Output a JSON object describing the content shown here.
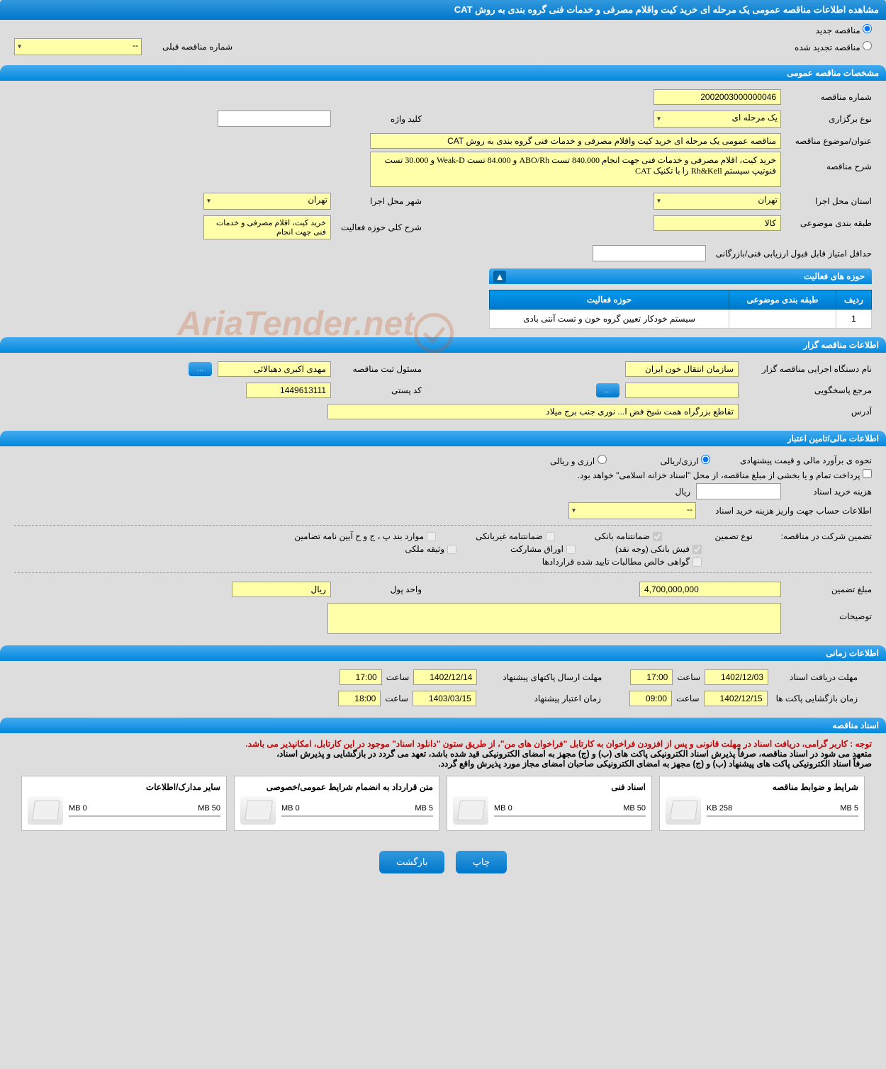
{
  "page_title": "مشاهده اطلاعات مناقصه عمومی یک مرحله ای خرید کیت واقلام مصرفی و خدمات فنی گروه بندی به روش CAT",
  "tender_status": {
    "new_label": "مناقصه جدید",
    "renewed_label": "مناقصه تجدید شده",
    "prev_number_label": "شماره مناقصه قبلی",
    "prev_number_value": "--"
  },
  "general_spec": {
    "header": "مشخصات مناقصه عمومی",
    "number_label": "شماره مناقصه",
    "number_value": "2002003000000046",
    "type_label": "نوع برگزاری",
    "type_value": "یک مرحله ای",
    "keyword_label": "کلید واژه",
    "keyword_value": "",
    "title_label": "عنوان/موضوع مناقصه",
    "title_value": "مناقصه عمومی یک مرحله ای خرید کیت واقلام مصرفی و خدمات فنی گروه بندی به روش CAT",
    "desc_label": "شرح مناقصه",
    "desc_value": "خرید کیت، اقلام مصرفی و خدمات فنی جهت انجام 840.000 تست ABO/Rh و 84.000 تست Weak-D و 30.000 تست فنوتیپ سیستم Rh&Kell را با تکنیک CAT",
    "province_label": "استان محل اجرا",
    "province_value": "تهران",
    "city_label": "شهر محل اجرا",
    "city_value": "تهران",
    "category_label": "طبقه بندی موضوعی",
    "category_value": "کالا",
    "activity_desc_label": "شرح کلی حوزه فعالیت",
    "activity_desc_value": "خرید کیت، اقلام مصرفی و خدمات فنی جهت انجام",
    "min_score_label": "حداقل امتیاز قابل قبول ارزیابی فنی/بازرگانی",
    "min_score_value": ""
  },
  "activities": {
    "header": "حوزه های فعالیت",
    "col_row": "ردیف",
    "col_category": "طبقه بندی موضوعی",
    "col_activity": "حوزه فعالیت",
    "rows": [
      {
        "num": "1",
        "category": "",
        "activity": "سیستم خودکار تعیین گروه خون و تست آنتی بادی"
      }
    ]
  },
  "organizer": {
    "header": "اطلاعات مناقصه گزار",
    "org_label": "نام دستگاه اجرایی مناقصه گزار",
    "org_value": "سازمان انتقال خون ایران",
    "registrar_label": "مسئول ثبت مناقصه",
    "registrar_value": "مهدی اکبری دهبالائی",
    "more_btn": "...",
    "respondent_label": "مرجع پاسخگویی",
    "respondent_value": "",
    "more_btn2": "...",
    "postal_label": "کد پستی",
    "postal_value": "1449613111",
    "address_label": "آدرس",
    "address_value": "تقاطع بزرگراه همت شیخ فض ا... نوری جنب برج میلاد"
  },
  "financial": {
    "header": "اطلاعات مالی/تامین اعتبار",
    "estimate_label": "نحوه ی برآورد مالی و قیمت پیشنهادی",
    "currency_rial": "ارزی/ریالی",
    "currency_foreign": "ارزی و ریالی",
    "payment_note": "پرداخت تمام و یا بخشی از مبلغ مناقصه، از محل \"اسناد خزانه اسلامی\" خواهد بود.",
    "doc_cost_label": "هزینه خرید اسناد",
    "doc_cost_value": "",
    "doc_cost_unit": "ریال",
    "account_label": "اطلاعات حساب جهت واریز هزینه خرید اسناد",
    "account_value": "--",
    "guarantee_label": "تضمین شرکت در مناقصه:",
    "guarantee_type_label": "نوع تضمین",
    "g_bank": "ضمانتنامه بانکی",
    "g_nonbank": "ضمانتنامه غیربانکی",
    "g_cases": "موارد بند پ ، ج و ح آیین نامه تضامین",
    "g_receipt": "فیش بانکی (وجه نقد)",
    "g_bonds": "اوراق مشارکت",
    "g_property": "وثیقه ملکی",
    "g_contract": "گواهی خالص مطالبات تایید شده قراردادها",
    "amount_label": "مبلغ تضمین",
    "amount_value": "4,700,000,000",
    "unit_label": "واحد پول",
    "unit_value": "ریال",
    "notes_label": "توضیحات",
    "notes_value": ""
  },
  "timing": {
    "header": "اطلاعات زمانی",
    "receive_label": "مهلت دریافت اسناد",
    "receive_date": "1402/12/03",
    "receive_time_label": "ساعت",
    "receive_time": "17:00",
    "submit_label": "مهلت ارسال پاکتهای پیشنهاد",
    "submit_date": "1402/12/14",
    "submit_time_label": "ساعت",
    "submit_time": "17:00",
    "open_label": "زمان بازگشایی پاکت ها",
    "open_date": "1402/12/15",
    "open_time_label": "ساعت",
    "open_time": "09:00",
    "valid_label": "زمان اعتبار پیشنهاد",
    "valid_date": "1403/03/15",
    "valid_time_label": "ساعت",
    "valid_time": "18:00"
  },
  "documents": {
    "header": "اسناد مناقصه",
    "note_red": "توجه : کاربر گرامی، دریافت اسناد در مهلت قانونی و پس از افزودن فراخوان به کارتابل \"فراخوان های من\"، از طریق ستون \"دانلود اسناد\" موجود در این کارتابل، امکانپذیر می باشد.",
    "note_black1": "متعهد می شود در اسناد مناقصه، صرفاً پذیرش اسناد الکترونیکی پاکت های (ب) و (ج) مجهز به امضای الکترونیکی قید شده باشد، تعهد می گردد در بازگشایی و پذیرش اسناد،",
    "note_black2": "صرفاً اسناد الکترونیکی پاکت های پیشنهاد (ب) و (ج) مجهز به امضای الکترونیکی صاحبان امضای مجاز مورد پذیرش واقع گردد.",
    "cards": [
      {
        "title": "شرایط و ضوابط مناقصه",
        "used": "258 KB",
        "total": "5 MB",
        "fill": 5
      },
      {
        "title": "اسناد فنی",
        "used": "0 MB",
        "total": "50 MB",
        "fill": 0
      },
      {
        "title": "متن قرارداد به انضمام شرایط عمومی/خصوصی",
        "used": "0 MB",
        "total": "5 MB",
        "fill": 0
      },
      {
        "title": "سایر مدارک/اطلاعات",
        "used": "0 MB",
        "total": "50 MB",
        "fill": 0
      }
    ]
  },
  "footer": {
    "print": "چاپ",
    "back": "بازگشت"
  },
  "watermark": "AriaTender.net"
}
